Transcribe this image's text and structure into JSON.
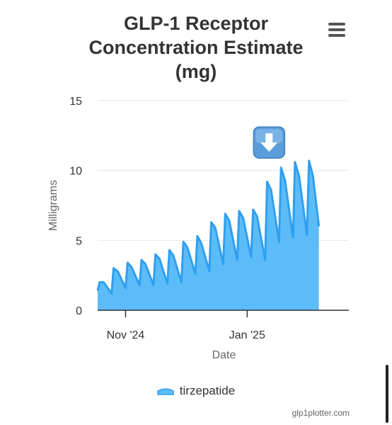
{
  "title_lines": [
    "GLP-1 Receptor",
    "Concentration Estimate",
    "(mg)"
  ],
  "menu_icon": "hamburger-menu-icon",
  "credit": "glp1plotter.com",
  "annotation_icon": "down-arrow-emoji-icon",
  "colors": {
    "series_fill": "#5cbcf8",
    "series_line": "#2f9ff0",
    "arrow_box": "#5a9ddb"
  },
  "chart_data": {
    "type": "area",
    "title": "GLP-1 Receptor Concentration Estimate (mg)",
    "xlabel": "Date",
    "ylabel": "Milligrams",
    "ylim": [
      0,
      15
    ],
    "yticks": [
      0,
      5,
      10,
      15
    ],
    "xlim": [
      "2024-10-18",
      "2025-02-21"
    ],
    "xticks": [
      {
        "date": "2024-11-01",
        "label": "Nov '24"
      },
      {
        "date": "2025-01-01",
        "label": "Jan '25"
      }
    ],
    "grid": true,
    "legend_position": "bottom-center",
    "series": [
      {
        "name": "tirzepatide",
        "points": [
          [
            "2024-10-18",
            0
          ],
          [
            "2024-10-18",
            1.4
          ],
          [
            "2024-10-19",
            2.0
          ],
          [
            "2024-10-21",
            2.0
          ],
          [
            "2024-10-25",
            1.2
          ],
          [
            "2024-10-26",
            3.0
          ],
          [
            "2024-10-28",
            2.8
          ],
          [
            "2024-11-01",
            1.6
          ],
          [
            "2024-11-02",
            3.4
          ],
          [
            "2024-11-04",
            3.1
          ],
          [
            "2024-11-08",
            1.8
          ],
          [
            "2024-11-09",
            3.6
          ],
          [
            "2024-11-11",
            3.3
          ],
          [
            "2024-11-15",
            1.8
          ],
          [
            "2024-11-16",
            4.0
          ],
          [
            "2024-11-18",
            3.7
          ],
          [
            "2024-11-22",
            1.9
          ],
          [
            "2024-11-23",
            4.3
          ],
          [
            "2024-11-25",
            3.9
          ],
          [
            "2024-11-29",
            2.0
          ],
          [
            "2024-11-30",
            4.9
          ],
          [
            "2024-12-02",
            4.5
          ],
          [
            "2024-12-06",
            2.6
          ],
          [
            "2024-12-07",
            5.3
          ],
          [
            "2024-12-09",
            4.8
          ],
          [
            "2024-12-13",
            2.8
          ],
          [
            "2024-12-14",
            6.3
          ],
          [
            "2024-12-16",
            5.9
          ],
          [
            "2024-12-20",
            3.3
          ],
          [
            "2024-12-21",
            6.9
          ],
          [
            "2024-12-23",
            6.4
          ],
          [
            "2024-12-27",
            3.6
          ],
          [
            "2024-12-28",
            7.1
          ],
          [
            "2024-12-30",
            6.6
          ],
          [
            "2025-01-03",
            3.8
          ],
          [
            "2025-01-04",
            7.2
          ],
          [
            "2025-01-06",
            6.7
          ],
          [
            "2025-01-10",
            3.6
          ],
          [
            "2025-01-11",
            9.2
          ],
          [
            "2025-01-13",
            8.6
          ],
          [
            "2025-01-17",
            4.9
          ],
          [
            "2025-01-18",
            10.2
          ],
          [
            "2025-01-20",
            9.3
          ],
          [
            "2025-01-24",
            5.2
          ],
          [
            "2025-01-25",
            10.6
          ],
          [
            "2025-01-27",
            9.6
          ],
          [
            "2025-01-31",
            5.4
          ],
          [
            "2025-02-01",
            10.7
          ],
          [
            "2025-02-03",
            9.6
          ],
          [
            "2025-02-06",
            6.0
          ],
          [
            "2025-02-06",
            0
          ]
        ]
      }
    ],
    "annotation": {
      "icon": "down-arrow",
      "date": "2025-01-12",
      "value": 12.0
    }
  }
}
